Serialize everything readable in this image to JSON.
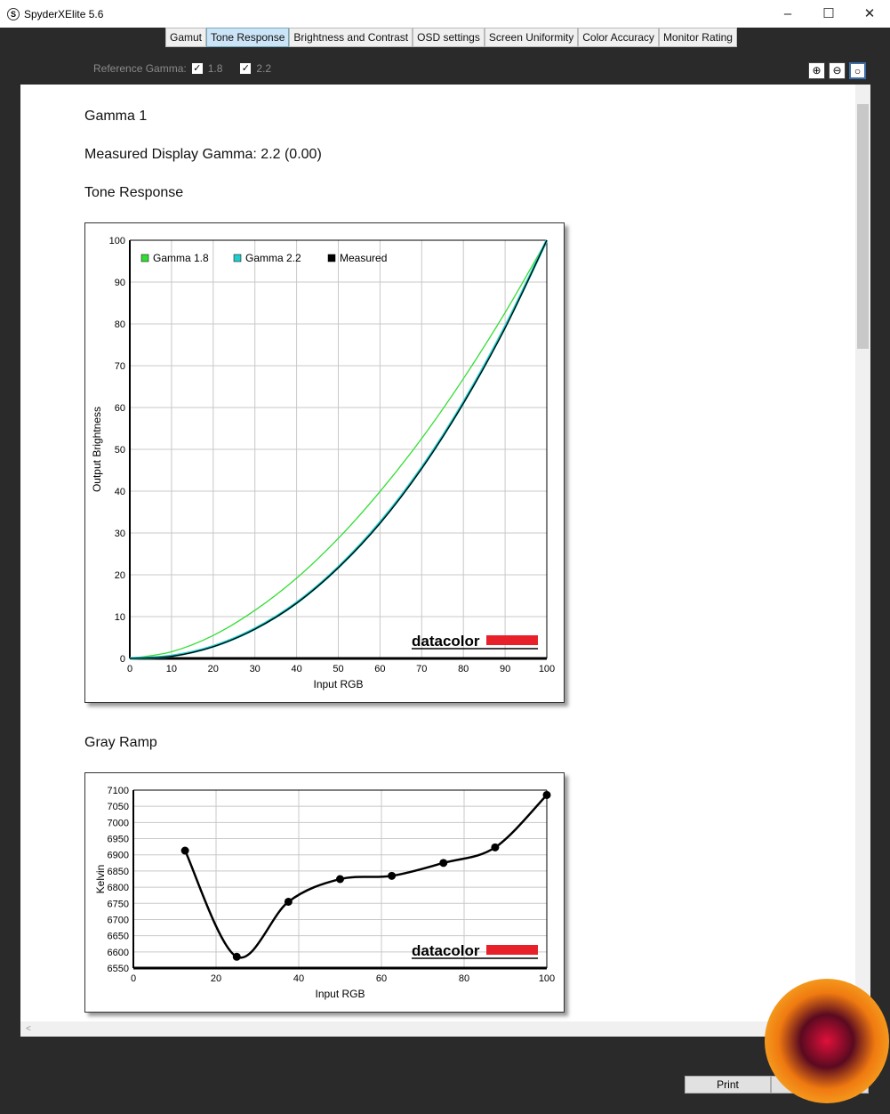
{
  "window": {
    "title": "SpyderXElite 5.6",
    "app_icon": "S",
    "controls": [
      "–",
      "☐",
      "✕"
    ]
  },
  "tabs": [
    {
      "label": "Gamut"
    },
    {
      "label": "Tone Response",
      "active": true
    },
    {
      "label": "Brightness and Contrast"
    },
    {
      "label": "OSD settings"
    },
    {
      "label": "Screen Uniformity"
    },
    {
      "label": "Color Accuracy"
    },
    {
      "label": "Monitor Rating"
    }
  ],
  "reference": {
    "label": "Reference Gamma:",
    "options": [
      {
        "label": "1.8",
        "checked": true
      },
      {
        "label": "2.2",
        "checked": true
      }
    ]
  },
  "zoom_icons": [
    "zoom-in-icon",
    "zoom-out-icon",
    "zoom-fit-icon"
  ],
  "report": {
    "heading": "Gamma 1",
    "measured": "Measured Display Gamma: 2.2 (0.00)",
    "tone_title": "Tone Response",
    "gray_title": "Gray Ramp"
  },
  "footer": {
    "print_label": "Print"
  },
  "brand": "datacolor",
  "colors": {
    "gamma18": "#33dd33",
    "gamma22": "#22cccc",
    "measured": "#000000",
    "brand_red": "#e8202a"
  },
  "chart_data": [
    {
      "type": "line",
      "xlabel": "Input RGB",
      "ylabel": "Output Brightness",
      "xlim": [
        0,
        100
      ],
      "ylim": [
        0,
        100
      ],
      "xticks": [
        0,
        10,
        20,
        30,
        40,
        50,
        60,
        70,
        80,
        90,
        100
      ],
      "yticks": [
        0,
        10,
        20,
        30,
        40,
        50,
        60,
        70,
        80,
        90,
        100
      ],
      "grid": true,
      "legend": "top-left",
      "x": [
        0,
        10,
        20,
        30,
        40,
        50,
        60,
        70,
        80,
        90,
        100
      ],
      "series": [
        {
          "name": "Gamma 1.8",
          "values": [
            0,
            1.6,
            5.5,
            11.5,
            19.2,
            28.7,
            39.9,
            52.6,
            66.9,
            82.7,
            100
          ]
        },
        {
          "name": "Gamma 2.2",
          "values": [
            0,
            0.6,
            2.9,
            7.1,
            13.3,
            21.8,
            32.5,
            45.6,
            61.2,
            79.3,
            100
          ]
        },
        {
          "name": "Measured",
          "values": [
            0,
            0.5,
            2.8,
            7.0,
            13.2,
            21.7,
            32.3,
            45.4,
            61.0,
            79.0,
            100
          ]
        }
      ]
    },
    {
      "type": "line",
      "xlabel": "Input RGB",
      "ylabel": "Kelvin",
      "xlim": [
        0,
        100
      ],
      "ylim": [
        6550,
        7100
      ],
      "xticks": [
        0,
        20,
        40,
        60,
        80,
        100
      ],
      "yticks": [
        6550,
        6600,
        6650,
        6700,
        6750,
        6800,
        6850,
        6900,
        6950,
        7000,
        7050,
        7100
      ],
      "grid": true,
      "x": [
        12.5,
        25,
        37.5,
        50,
        62.5,
        75,
        87.5,
        100
      ],
      "values": [
        6913,
        6585,
        6755,
        6825,
        6835,
        6875,
        6923,
        7085
      ]
    }
  ]
}
